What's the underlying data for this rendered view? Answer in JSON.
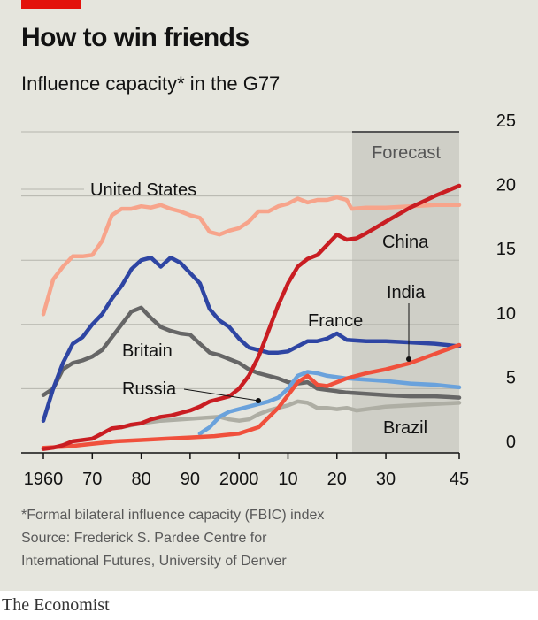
{
  "header": {
    "title": "How to win friends",
    "subtitle": "Influence capacity* in the G77"
  },
  "footer": {
    "footnote": "*Formal bilateral influence capacity (FBIC) index",
    "source_line1": "Source: Frederick S. Pardee Centre for",
    "source_line2": "International Futures, University of Denver",
    "brand": "The Economist"
  },
  "colors": {
    "background": "#e5e5dd",
    "forecast_band": "#cfcfc7",
    "united_states": "#f7a48b",
    "china": "#c91d22",
    "india": "#f0503c",
    "france": "#2e45a3",
    "britain": "#666666",
    "russia": "#6aa2dc",
    "brazil": "#aeaea4",
    "accent_red": "#e3120b"
  },
  "chart_data": {
    "type": "line",
    "title": "Influence capacity* in the G77",
    "x_tick_labels": [
      "1960",
      "70",
      "80",
      "90",
      "2000",
      "10",
      "20",
      "30",
      "45"
    ],
    "x_ticks": [
      1960,
      1970,
      1980,
      1990,
      2000,
      2010,
      2020,
      2030,
      2045
    ],
    "y_tick_labels": [
      "0",
      "5",
      "10",
      "15",
      "20",
      "25"
    ],
    "y_ticks": [
      0,
      5,
      10,
      15,
      20,
      25
    ],
    "xlim": [
      1957,
      2046
    ],
    "ylim": [
      0,
      25
    ],
    "grid": true,
    "y_axis_side": "right",
    "forecast": {
      "label": "Forecast",
      "start": 2023,
      "end": 2045
    },
    "series": [
      {
        "name": "United States",
        "color_key": "united_states",
        "x": [
          1960,
          1962,
          1964,
          1966,
          1968,
          1970,
          1972,
          1974,
          1976,
          1978,
          1980,
          1982,
          1984,
          1986,
          1988,
          1990,
          1992,
          1994,
          1996,
          1998,
          2000,
          2002,
          2004,
          2006,
          2008,
          2010,
          2012,
          2014,
          2016,
          2018,
          2020,
          2022,
          2023,
          2026,
          2030,
          2035,
          2040,
          2045
        ],
        "values": [
          10.8,
          13.5,
          14.5,
          15.3,
          15.3,
          15.4,
          16.5,
          18.5,
          19.0,
          19.0,
          19.2,
          19.1,
          19.3,
          19.0,
          18.8,
          18.5,
          18.3,
          17.2,
          17.0,
          17.3,
          17.5,
          18.0,
          18.8,
          18.8,
          19.2,
          19.4,
          19.8,
          19.5,
          19.7,
          19.7,
          19.9,
          19.7,
          19.0,
          19.1,
          19.1,
          19.2,
          19.3,
          19.3
        ]
      },
      {
        "name": "China",
        "color_key": "china",
        "x": [
          1960,
          1962,
          1964,
          1966,
          1968,
          1970,
          1972,
          1974,
          1976,
          1978,
          1980,
          1982,
          1984,
          1986,
          1988,
          1990,
          1992,
          1994,
          1996,
          1998,
          2000,
          2002,
          2004,
          2006,
          2008,
          2010,
          2012,
          2014,
          2016,
          2018,
          2020,
          2022,
          2024,
          2026,
          2030,
          2035,
          2040,
          2045
        ],
        "values": [
          0.3,
          0.4,
          0.6,
          0.9,
          1.0,
          1.1,
          1.5,
          1.9,
          2.0,
          2.2,
          2.3,
          2.6,
          2.8,
          2.9,
          3.1,
          3.3,
          3.6,
          4.0,
          4.2,
          4.4,
          5.0,
          6.0,
          7.5,
          9.5,
          11.5,
          13.2,
          14.5,
          15.1,
          15.4,
          16.2,
          17.0,
          16.6,
          16.7,
          17.1,
          18.0,
          19.1,
          20.0,
          20.8
        ]
      },
      {
        "name": "India",
        "color_key": "india",
        "x": [
          1960,
          1965,
          1970,
          1975,
          1980,
          1985,
          1990,
          1995,
          2000,
          2004,
          2008,
          2010,
          2012,
          2014,
          2016,
          2018,
          2020,
          2022,
          2026,
          2030,
          2035,
          2040,
          2045
        ],
        "values": [
          0.4,
          0.5,
          0.7,
          0.9,
          1.0,
          1.1,
          1.2,
          1.3,
          1.5,
          2.0,
          3.5,
          4.5,
          5.5,
          6.0,
          5.3,
          5.2,
          5.5,
          5.8,
          6.2,
          6.5,
          7.0,
          7.7,
          8.4
        ]
      },
      {
        "name": "France",
        "color_key": "france",
        "x": [
          1960,
          1962,
          1964,
          1966,
          1968,
          1970,
          1972,
          1974,
          1976,
          1978,
          1980,
          1982,
          1984,
          1986,
          1988,
          1990,
          1992,
          1994,
          1996,
          1998,
          2000,
          2002,
          2004,
          2006,
          2008,
          2010,
          2012,
          2014,
          2016,
          2018,
          2020,
          2022,
          2026,
          2030,
          2035,
          2040,
          2045
        ],
        "values": [
          2.5,
          5.0,
          7.0,
          8.5,
          9.0,
          10.0,
          10.8,
          12.0,
          13.0,
          14.3,
          15.0,
          15.2,
          14.5,
          15.2,
          14.8,
          14.0,
          13.2,
          11.2,
          10.3,
          9.8,
          8.9,
          8.2,
          8.0,
          7.8,
          7.8,
          7.9,
          8.3,
          8.7,
          8.7,
          8.9,
          9.3,
          8.8,
          8.7,
          8.7,
          8.6,
          8.5,
          8.3
        ]
      },
      {
        "name": "Britain",
        "color_key": "britain",
        "x": [
          1960,
          1962,
          1964,
          1966,
          1968,
          1970,
          1972,
          1974,
          1976,
          1978,
          1980,
          1982,
          1984,
          1986,
          1988,
          1990,
          1992,
          1994,
          1996,
          1998,
          2000,
          2002,
          2004,
          2006,
          2008,
          2010,
          2012,
          2014,
          2016,
          2018,
          2020,
          2022,
          2026,
          2030,
          2035,
          2040,
          2045
        ],
        "values": [
          4.5,
          5.0,
          6.5,
          7.0,
          7.2,
          7.5,
          8.0,
          9.0,
          10.0,
          11.0,
          11.3,
          10.5,
          9.8,
          9.5,
          9.3,
          9.2,
          8.5,
          7.8,
          7.6,
          7.3,
          7.0,
          6.5,
          6.2,
          6.0,
          5.8,
          5.5,
          5.4,
          5.5,
          5.0,
          4.9,
          4.8,
          4.7,
          4.6,
          4.5,
          4.4,
          4.4,
          4.3
        ]
      },
      {
        "name": "Russia",
        "color_key": "russia",
        "x": [
          1992,
          1994,
          1996,
          1998,
          2000,
          2002,
          2004,
          2006,
          2008,
          2010,
          2012,
          2014,
          2016,
          2018,
          2020,
          2022,
          2026,
          2030,
          2035,
          2040,
          2045
        ],
        "values": [
          1.5,
          2.0,
          2.8,
          3.2,
          3.4,
          3.6,
          3.8,
          4.0,
          4.3,
          5.0,
          6.0,
          6.3,
          6.2,
          6.0,
          5.9,
          5.8,
          5.7,
          5.6,
          5.4,
          5.3,
          5.1
        ]
      },
      {
        "name": "Brazil",
        "color_key": "brazil",
        "x": [
          1976,
          1980,
          1984,
          1988,
          1992,
          1996,
          1998,
          2000,
          2002,
          2004,
          2006,
          2008,
          2010,
          2012,
          2014,
          2016,
          2018,
          2020,
          2022,
          2024,
          2030,
          2035,
          2040,
          2045
        ],
        "values": [
          2.0,
          2.3,
          2.5,
          2.6,
          2.7,
          2.8,
          2.6,
          2.5,
          2.6,
          3.0,
          3.3,
          3.5,
          3.7,
          4.0,
          3.9,
          3.5,
          3.5,
          3.4,
          3.5,
          3.3,
          3.6,
          3.7,
          3.8,
          3.9
        ]
      }
    ]
  }
}
